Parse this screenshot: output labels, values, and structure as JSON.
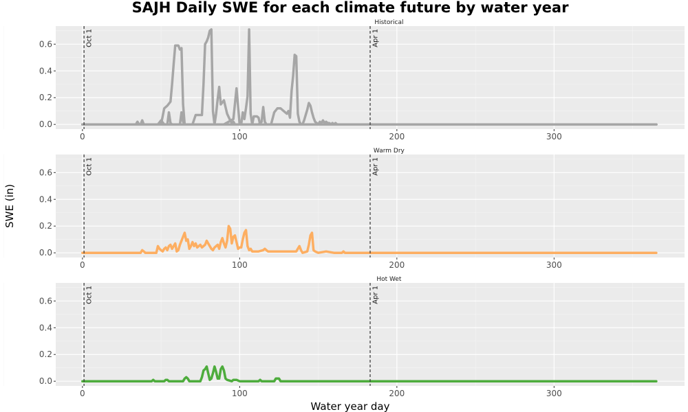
{
  "chart_data": {
    "type": "line",
    "title": "SAJH Daily SWE for each climate future by water year",
    "xlabel": "Water year day",
    "ylabel": "SWE (in)",
    "xlim": [
      -17,
      383
    ],
    "ylim": [
      -0.035,
      0.735
    ],
    "x_ticks": [
      0,
      100,
      200,
      300
    ],
    "y_ticks": [
      0.0,
      0.2,
      0.4,
      0.6
    ],
    "x_tick_labels": [
      "0",
      "100",
      "200",
      "300"
    ],
    "y_tick_labels": [
      "0.0",
      "0.2",
      "0.4",
      "0.6"
    ],
    "grid": true,
    "legend": "none",
    "reference_lines": [
      {
        "label": "Oct 1",
        "x": 1
      },
      {
        "label": "Apr 1",
        "x": 183
      }
    ],
    "panels": [
      {
        "name": "Historical",
        "color": "#a6a6a6",
        "series": [
          {
            "x": [
              0,
              34,
              35,
              36,
              37,
              38,
              39,
              40,
              50,
              52,
              54,
              56,
              57,
              58,
              59,
              60,
              61,
              62,
              63,
              64,
              65,
              70,
              72,
              74,
              76,
              77,
              78,
              79,
              80,
              81,
              82,
              83,
              84,
              90,
              96,
              98,
              100,
              105,
              365
            ],
            "y": [
              0,
              0,
              0.02,
              0,
              0,
              0.03,
              0,
              0,
              0,
              0.12,
              0.14,
              0.17,
              0.3,
              0.45,
              0.59,
              0.59,
              0.59,
              0.56,
              0.57,
              0.15,
              0,
              0,
              0.07,
              0.07,
              0.07,
              0.3,
              0.6,
              0.62,
              0.65,
              0.7,
              0.71,
              0.1,
              0,
              0,
              0.04,
              0.27,
              0,
              0,
              0
            ]
          },
          {
            "x": [
              0,
              48,
              50,
              52,
              54,
              55,
              56,
              57,
              365
            ],
            "y": [
              0,
              0,
              0.03,
              0,
              0,
              0.09,
              0.01,
              0,
              0
            ]
          },
          {
            "x": [
              0,
              62,
              63,
              64,
              65,
              66,
              365
            ],
            "y": [
              0,
              0,
              0.09,
              0.02,
              0,
              0,
              0
            ]
          },
          {
            "x": [
              0,
              84,
              85,
              86,
              87,
              88,
              90,
              92,
              94,
              95,
              96,
              97,
              98,
              365
            ],
            "y": [
              0,
              0,
              0.08,
              0.19,
              0.28,
              0.15,
              0.18,
              0.08,
              0.03,
              0.01,
              0.02,
              0,
              0,
              0
            ]
          },
          {
            "x": [
              0,
              101,
              102,
              103,
              104,
              105,
              106,
              107,
              108,
              109,
              110,
              111,
              112,
              113,
              114,
              365
            ],
            "y": [
              0,
              0,
              0.09,
              0.04,
              0.12,
              0.21,
              0.71,
              0.08,
              0,
              0.06,
              0.06,
              0.06,
              0.05,
              0,
              0,
              0
            ]
          },
          {
            "x": [
              0,
              112,
              114,
              115,
              116,
              117,
              365
            ],
            "y": [
              0,
              0,
              0.02,
              0.13,
              0.02,
              0,
              0
            ]
          },
          {
            "x": [
              0,
              120,
              122,
              124,
              126,
              128,
              130,
              131,
              132,
              133,
              134,
              135,
              136,
              137,
              138,
              139,
              140,
              365
            ],
            "y": [
              0,
              0,
              0.09,
              0.12,
              0.12,
              0.1,
              0.08,
              0.1,
              0.05,
              0.25,
              0.36,
              0.52,
              0.51,
              0.08,
              0.02,
              0,
              0,
              0
            ]
          },
          {
            "x": [
              0,
              140,
              141,
              142,
              143,
              144,
              145,
              146,
              147,
              148,
              149,
              150,
              365
            ],
            "y": [
              0,
              0,
              0.03,
              0.07,
              0.11,
              0.16,
              0.14,
              0.09,
              0.05,
              0.02,
              0.01,
              0,
              0
            ]
          },
          {
            "x": [
              0,
              150,
              151,
              152,
              153,
              154,
              155,
              156,
              157,
              158,
              159,
              160,
              161,
              162,
              365
            ],
            "y": [
              0,
              0,
              0.02,
              0.01,
              0.03,
              0.01,
              0.02,
              0.01,
              0.01,
              0,
              0.01,
              0,
              0.01,
              0,
              0
            ]
          }
        ]
      },
      {
        "name": "Warm Dry",
        "color": "#fdae61",
        "series": [
          {
            "x": [
              0,
              37,
              38,
              39,
              40,
              47,
              48,
              49,
              50,
              51,
              52,
              53,
              54,
              55,
              56,
              57,
              58,
              59,
              60,
              61,
              62,
              63,
              64,
              65,
              66,
              67,
              68,
              69,
              70,
              71,
              72,
              73,
              74,
              75,
              76,
              77,
              78,
              79,
              80,
              81,
              82,
              83,
              84,
              85,
              86,
              87,
              88,
              89,
              90,
              91,
              92,
              93,
              94,
              95,
              96,
              97,
              98,
              99,
              100,
              101,
              102,
              103,
              104,
              105,
              106,
              107,
              108,
              110,
              112,
              115,
              116,
              117,
              118,
              120,
              125,
              130,
              136,
              137,
              138,
              139,
              140,
              143,
              144,
              145,
              146,
              147,
              148,
              150,
              155,
              160,
              165,
              166,
              167,
              365
            ],
            "y": [
              0,
              0,
              0.02,
              0.01,
              0,
              0,
              0.05,
              0.03,
              0.02,
              0.01,
              0.03,
              0.04,
              0.02,
              0.05,
              0.06,
              0.03,
              0.05,
              0.07,
              0.01,
              0.02,
              0.06,
              0.09,
              0.12,
              0.15,
              0.09,
              0.1,
              0.03,
              0.05,
              0.08,
              0.05,
              0.07,
              0.04,
              0.05,
              0.06,
              0.04,
              0.05,
              0.06,
              0.09,
              0.07,
              0.05,
              0.03,
              0.02,
              0.04,
              0.05,
              0.06,
              0.03,
              0.08,
              0.11,
              0.07,
              0.04,
              0.09,
              0.2,
              0.18,
              0.07,
              0.12,
              0.13,
              0.08,
              0.03,
              0.04,
              0.04,
              0.1,
              0.15,
              0.17,
              0.05,
              0.02,
              0.03,
              0.01,
              0.01,
              0.01,
              0.02,
              0.03,
              0.02,
              0.01,
              0.01,
              0.01,
              0.01,
              0.01,
              0.03,
              0.05,
              0.02,
              0,
              0.01,
              0.06,
              0.13,
              0.15,
              0.02,
              0.01,
              0,
              0.01,
              0,
              0,
              0.01,
              0,
              0
            ]
          }
        ]
      },
      {
        "name": "Hot Wet",
        "color": "#4dac3c",
        "series": [
          {
            "x": [
              0,
              44,
              45,
              46,
              52,
              53,
              54,
              55,
              64,
              65,
              66,
              67,
              68,
              75,
              76,
              77,
              78,
              79,
              80,
              81,
              82,
              83,
              84,
              85,
              86,
              87,
              88,
              89,
              90,
              91,
              92,
              95,
              96,
              98,
              100,
              112,
              113,
              114,
              122,
              123,
              124,
              125,
              126,
              365
            ],
            "y": [
              0,
              0,
              0.01,
              0,
              0,
              0.01,
              0.01,
              0,
              0,
              0.02,
              0.03,
              0.02,
              0,
              0,
              0.03,
              0.08,
              0.09,
              0.11,
              0.06,
              0.01,
              0.02,
              0.06,
              0.11,
              0.07,
              0.02,
              0.02,
              0.09,
              0.11,
              0.08,
              0.02,
              0.01,
              0,
              0.01,
              0.01,
              0,
              0,
              0.01,
              0,
              0,
              0.02,
              0.02,
              0.02,
              0,
              0
            ]
          }
        ]
      }
    ]
  }
}
